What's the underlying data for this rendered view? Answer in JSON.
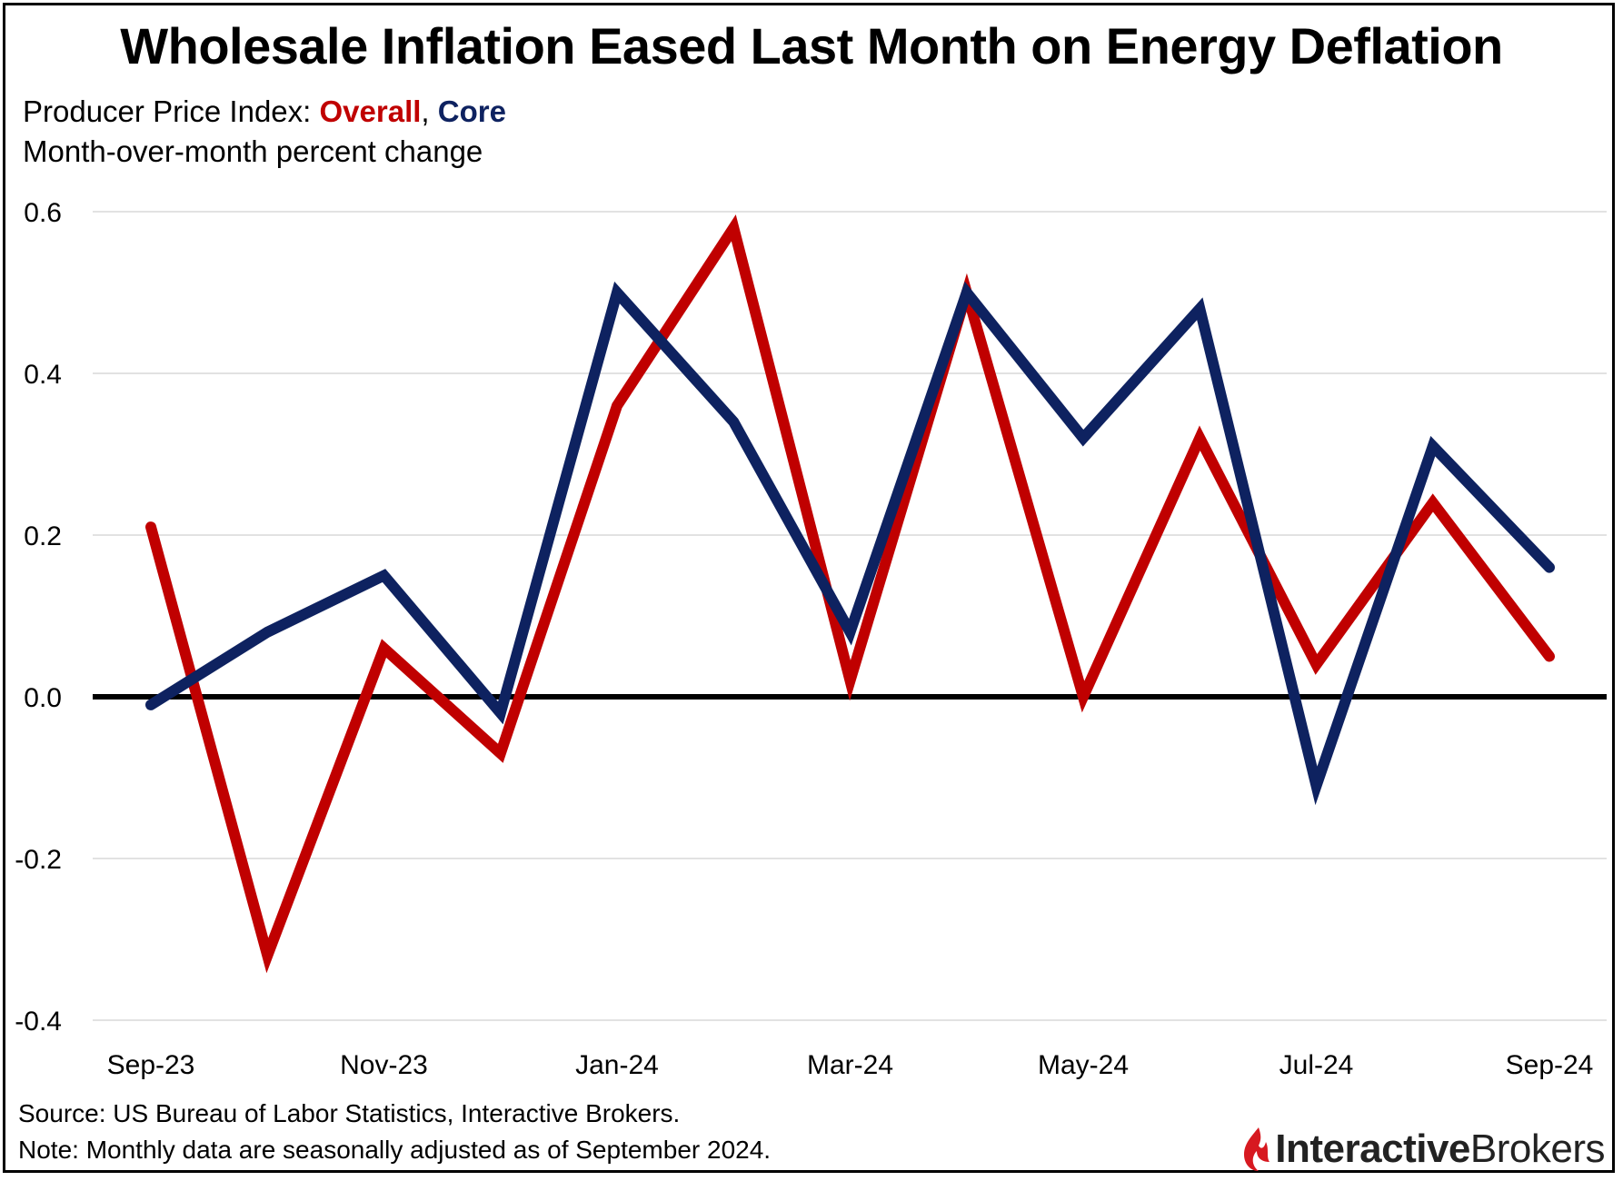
{
  "title": "Wholesale Inflation Eased Last Month on Energy Deflation",
  "subtitle_prefix": "Producer Price Index: ",
  "subtitle_overall": "Overall",
  "subtitle_sep": ", ",
  "subtitle_core": "Core",
  "subtitle_line2": "Month-over-month percent change",
  "source": "Source: US Bureau of Labor Statistics, Interactive Brokers.",
  "note": "Note: Monthly data are seasonally adjusted as of September 2024.",
  "logo": {
    "part1": "Interactive",
    "part2": "Brokers",
    "icon": "ib-flame-icon"
  },
  "colors": {
    "overall": "#c00000",
    "core": "#0e2260",
    "zero_line": "#000000",
    "grid": "#d9d9d9"
  },
  "chart_data": {
    "type": "line",
    "title": "Wholesale Inflation Eased Last Month on Energy Deflation",
    "xlabel": "",
    "ylabel": "Month-over-month percent change",
    "x": [
      "Sep-23",
      "Oct-23",
      "Nov-23",
      "Dec-23",
      "Jan-24",
      "Feb-24",
      "Mar-24",
      "Apr-24",
      "May-24",
      "Jun-24",
      "Jul-24",
      "Aug-24",
      "Sep-24"
    ],
    "x_tick_labels": [
      "Sep-23",
      "",
      "Nov-23",
      "",
      "Jan-24",
      "",
      "Mar-24",
      "",
      "May-24",
      "",
      "Jul-24",
      "",
      "Sep-24"
    ],
    "y_ticks": [
      "0.6",
      "0.4",
      "0.2",
      "0.0",
      "-0.2",
      "-0.4"
    ],
    "ylim": [
      -0.4,
      0.6
    ],
    "grid": true,
    "legend": "in subtitle",
    "series": [
      {
        "name": "Overall",
        "color": "#c00000",
        "values": [
          0.21,
          -0.32,
          0.06,
          -0.07,
          0.36,
          0.58,
          0.02,
          0.5,
          0.0,
          0.32,
          0.04,
          0.24,
          0.05
        ]
      },
      {
        "name": "Core",
        "color": "#0e2260",
        "values": [
          -0.01,
          0.08,
          0.15,
          -0.02,
          0.5,
          0.34,
          0.08,
          0.5,
          0.32,
          0.48,
          -0.11,
          0.31,
          0.16
        ]
      }
    ]
  }
}
